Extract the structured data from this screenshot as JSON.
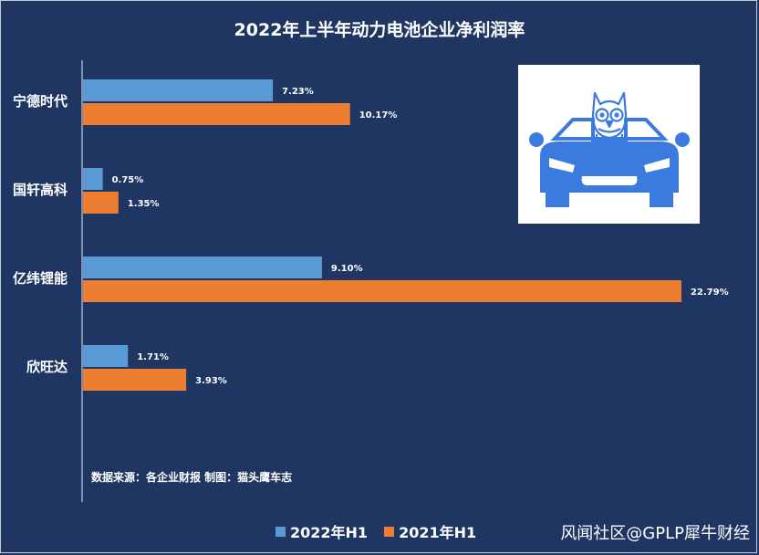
{
  "chart_data": {
    "type": "bar",
    "orientation": "horizontal",
    "title": "2022年上半年动力电池企业净利润率",
    "categories": [
      "宁德时代",
      "国轩高科",
      "亿纬锂能",
      "欣旺达"
    ],
    "series": [
      {
        "name": "2022年H1",
        "values": [
          7.23,
          0.75,
          9.1,
          1.71
        ],
        "labels": [
          "7.23%",
          "0.75%",
          "9.10%",
          "1.71%"
        ],
        "color": "#5b9bd5"
      },
      {
        "name": "2021年H1",
        "values": [
          10.17,
          1.35,
          22.79,
          3.93
        ],
        "labels": [
          "10.17%",
          "1.35%",
          "22.79%",
          "3.93%"
        ],
        "color": "#ed7d31"
      }
    ],
    "xlim": [
      0,
      23
    ],
    "grid": false,
    "legend_position": "bottom"
  },
  "source_note": "数据来源：各企业财报  制图：猫头鹰车志",
  "watermark": "风闻社区@GPLP犀牛财经",
  "logo": {
    "icon": "owl-on-car-icon",
    "color": "#3b7be0"
  }
}
